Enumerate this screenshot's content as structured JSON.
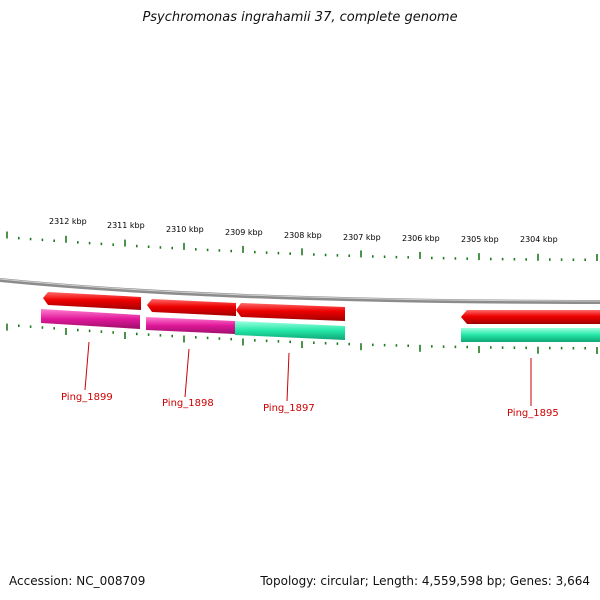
{
  "title": "Psychromonas ingrahamii 37, complete genome",
  "footer": {
    "accession": "Accession: NC_008709",
    "summary": "Topology: circular; Length: 4,559,598 bp; Genes: 3,664"
  },
  "scale": {
    "unit": "kbp",
    "labels": [
      "2312 kbp",
      "2311 kbp",
      "2310 kbp",
      "2309 kbp",
      "2308 kbp",
      "2307 kbp",
      "2306 kbp",
      "2305 kbp",
      "2304 kbp"
    ]
  },
  "genes": [
    {
      "label": "Ping_1899"
    },
    {
      "label": "Ping_1898"
    },
    {
      "label": "Ping_1897"
    },
    {
      "label": "Ping_1895"
    }
  ],
  "colors": {
    "backbone": "#8c8c8c",
    "tick": "#1f7a1f",
    "cds": "#ee0000",
    "gene_magenta": "#e0189a",
    "gene_teal": "#22e6a6",
    "label": "#cc0000"
  }
}
